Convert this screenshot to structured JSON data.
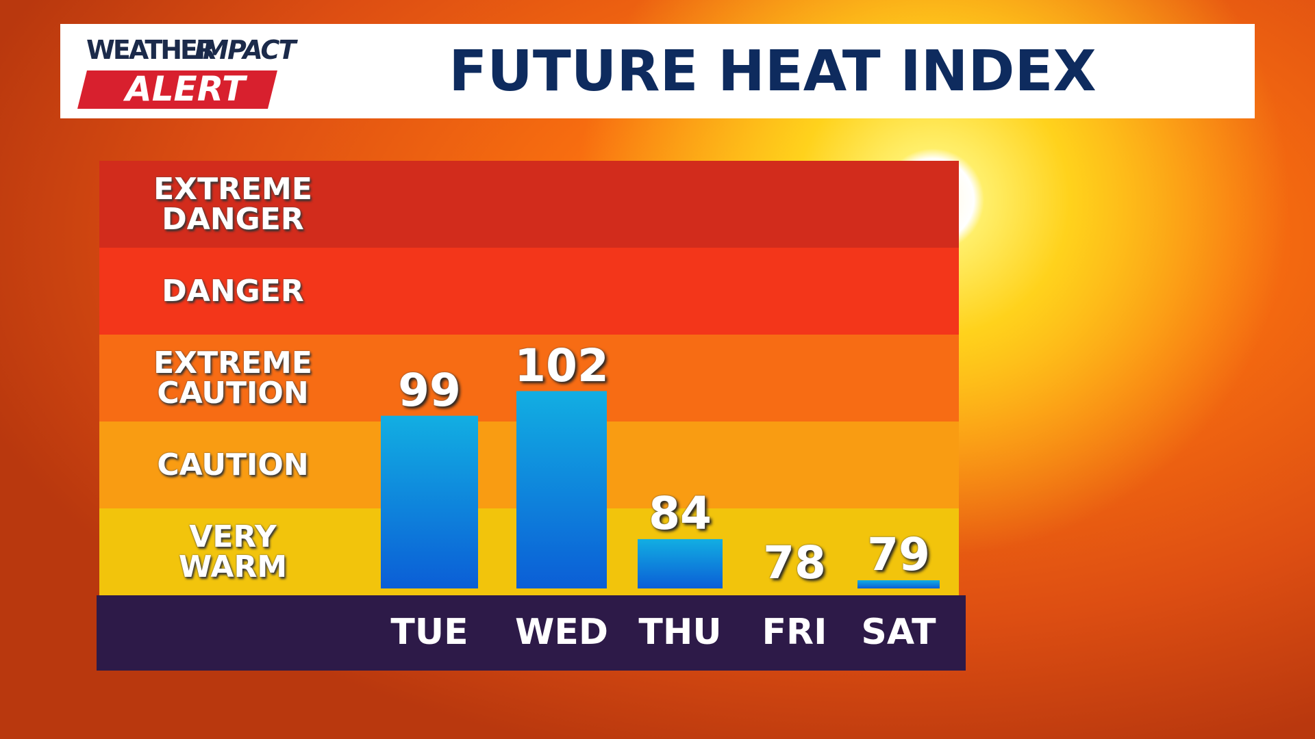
{
  "logo": {
    "brand": "WEATHER",
    "product": "IMPACT",
    "alert": "ALERT"
  },
  "chart_data": {
    "type": "bar",
    "title": "FUTURE HEAT INDEX",
    "categories": [
      "TUE",
      "WED",
      "THU",
      "FRI",
      "SAT"
    ],
    "values": [
      99,
      102,
      84,
      78,
      79
    ],
    "color": "#0b63d6",
    "ylim": [
      78,
      130
    ],
    "bands": [
      {
        "name": "EXTREME DANGER",
        "color": "#d22c1c"
      },
      {
        "name": "DANGER",
        "color": "#f3361a"
      },
      {
        "name": "EXTREME CAUTION",
        "color": "#f76c14"
      },
      {
        "name": "CAUTION",
        "color": "#f99c12"
      },
      {
        "name": "VERY WARM",
        "color": "#f2c40c"
      }
    ]
  }
}
